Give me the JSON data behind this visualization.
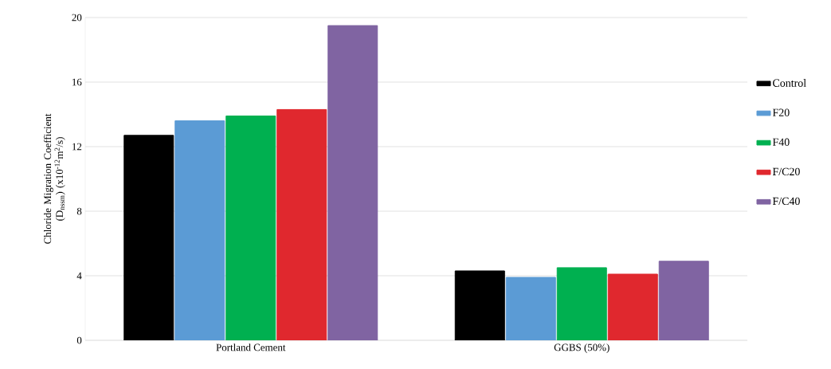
{
  "chart_data": {
    "type": "bar",
    "ylabel": "Chloride Migration Coefficient (D$_{nssm}$) (x10$^{-12}$m$^{2}$/s)",
    "categories": [
      "Portland Cement",
      "GGBS (50%)"
    ],
    "series": [
      {
        "name": "Control",
        "color": "#000000",
        "values": [
          12.7,
          4.3
        ]
      },
      {
        "name": "F20",
        "color": "#5b9bd5",
        "values": [
          13.6,
          3.9
        ]
      },
      {
        "name": "F40",
        "color": "#00b050",
        "values": [
          13.9,
          4.5
        ]
      },
      {
        "name": "F/C20",
        "color": "#e0282e",
        "values": [
          14.3,
          4.1
        ]
      },
      {
        "name": "F/C40",
        "color": "#8064a2",
        "values": [
          19.5,
          4.9
        ]
      }
    ],
    "ylim": [
      0,
      20
    ],
    "yticks": [
      0,
      4,
      8,
      12,
      16,
      20
    ],
    "grid": "y",
    "legend": "right"
  }
}
